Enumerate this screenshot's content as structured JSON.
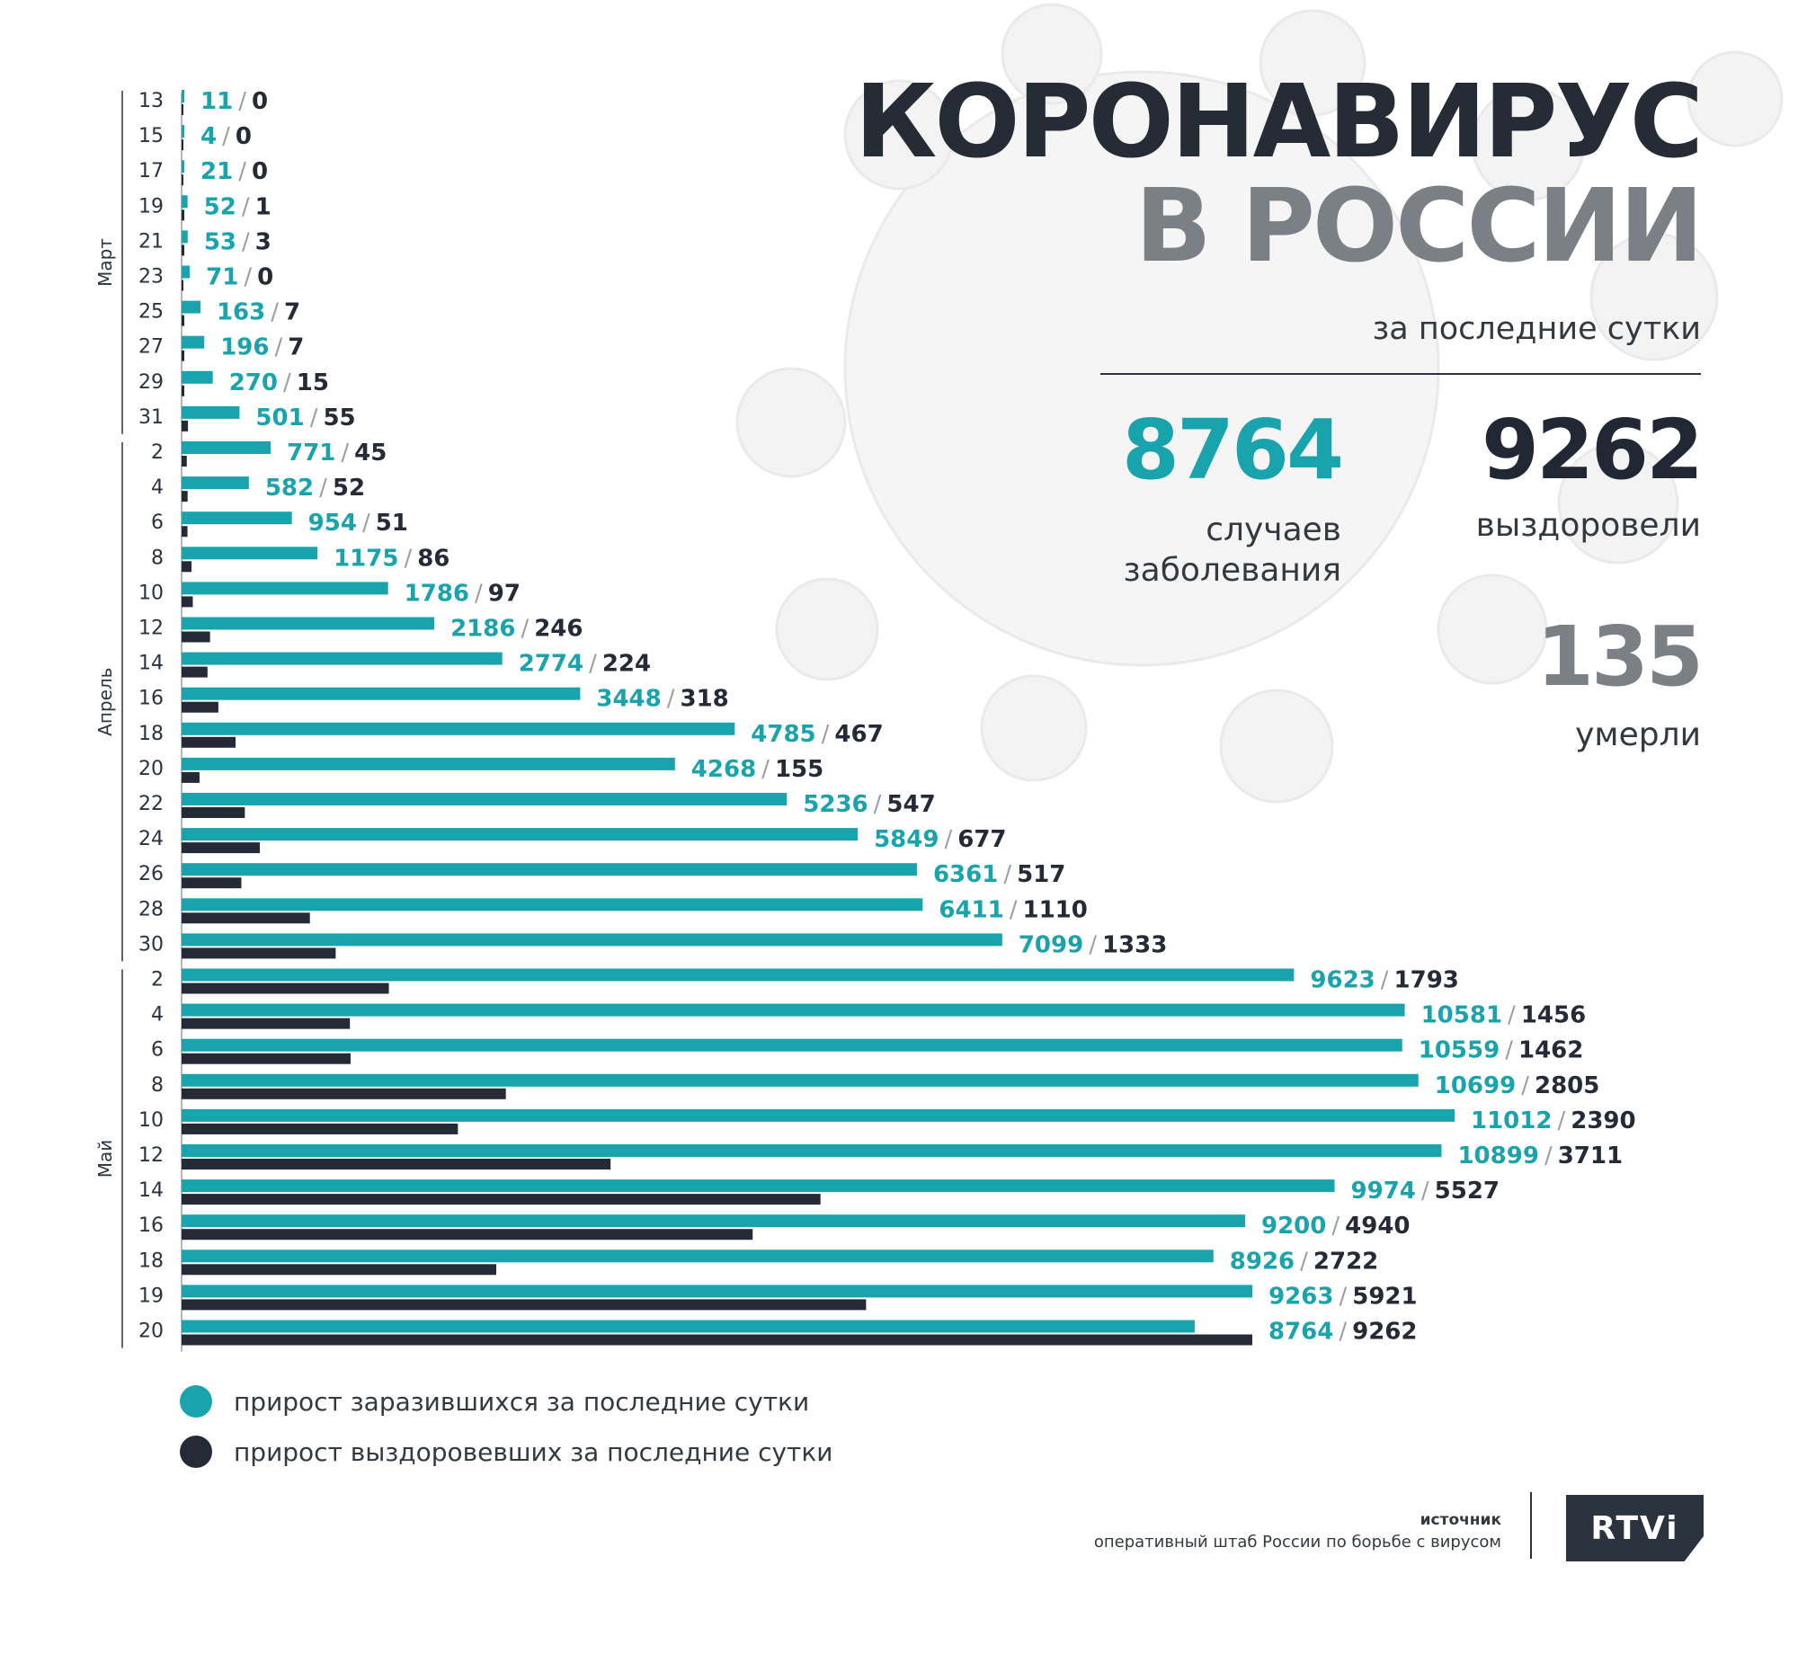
{
  "header": {
    "title_line1": "КОРОНАВИРУС",
    "title_line2": "В РОССИИ",
    "subtitle": "за последние сутки"
  },
  "stats": {
    "cases_value": "8764",
    "cases_label": "случаев заболевания",
    "recovered_value": "9262",
    "recovered_label": "выздоровели",
    "deaths_value": "135",
    "deaths_label": "умерли"
  },
  "legend": {
    "infected_label": "прирост заразившихся за последние сутки",
    "recovered_label": "прирост выздоровевших за последние сутки"
  },
  "source": {
    "heading": "источник",
    "text": "оперативный штаб России по борьбе с вирусом"
  },
  "logo": {
    "text": "RTVi"
  },
  "colors": {
    "infected": "#19a4ad",
    "recovered": "#252b36",
    "title_dark": "#262c36",
    "title_grey": "#7b8086"
  },
  "chart_data": {
    "type": "bar",
    "orientation": "horizontal",
    "title": "",
    "xlabel": "",
    "ylabel": "",
    "xlim": [
      0,
      11012
    ],
    "months": [
      {
        "label": "Март",
        "start_index": 0,
        "end_index": 9
      },
      {
        "label": "Апрель",
        "start_index": 10,
        "end_index": 24
      },
      {
        "label": "Май",
        "start_index": 25,
        "end_index": 35
      }
    ],
    "categories": [
      "13",
      "15",
      "17",
      "19",
      "21",
      "23",
      "25",
      "27",
      "29",
      "31",
      "2",
      "4",
      "6",
      "8",
      "10",
      "12",
      "14",
      "16",
      "18",
      "20",
      "22",
      "24",
      "26",
      "28",
      "30",
      "2",
      "4",
      "6",
      "8",
      "10",
      "12",
      "14",
      "16",
      "18",
      "19",
      "20"
    ],
    "series": [
      {
        "name": "прирост заразившихся за последние сутки",
        "color": "#19a4ad",
        "values": [
          11,
          4,
          21,
          52,
          53,
          71,
          163,
          196,
          270,
          501,
          771,
          582,
          954,
          1175,
          1786,
          2186,
          2774,
          3448,
          4785,
          4268,
          5236,
          5849,
          6361,
          6411,
          7099,
          9623,
          10581,
          10559,
          10699,
          11012,
          10899,
          9974,
          9200,
          8926,
          9263,
          8764
        ]
      },
      {
        "name": "прирост выздоровевших за последние сутки",
        "color": "#252b36",
        "values": [
          0,
          0,
          0,
          1,
          3,
          0,
          7,
          7,
          15,
          55,
          45,
          52,
          51,
          86,
          97,
          246,
          224,
          318,
          467,
          155,
          547,
          677,
          517,
          1110,
          1333,
          1793,
          1456,
          1462,
          2805,
          2390,
          3711,
          5527,
          4940,
          2722,
          5921,
          9262
        ]
      }
    ],
    "label_separator": "/"
  }
}
